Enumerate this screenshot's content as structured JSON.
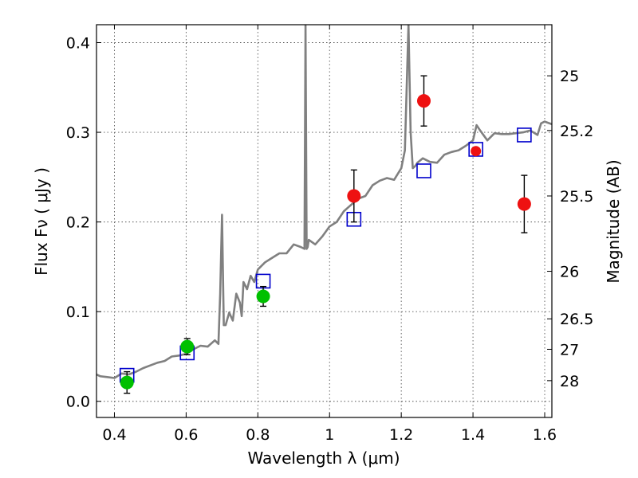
{
  "chart_data": {
    "type": "scatter",
    "title": "",
    "xlabel": "Wavelength  λ (μm)",
    "ylabel": "Flux  Fν  ( μJy )",
    "y2label": "Magnitude (AB)",
    "xlim": [
      0.35,
      1.62
    ],
    "ylim": [
      -0.018,
      0.42
    ],
    "x_ticks": [
      0.4,
      0.6,
      0.8,
      1.0,
      1.2,
      1.4,
      1.6
    ],
    "x_tick_labels": [
      "0.4",
      "0.6",
      "0.8",
      "1",
      "1.2",
      "1.4",
      "1.6"
    ],
    "y_ticks": [
      0.0,
      0.1,
      0.2,
      0.3,
      0.4
    ],
    "y_tick_labels": [
      "0.0",
      "0.1",
      "0.2",
      "0.3",
      "0.4"
    ],
    "y2_ticks": [
      {
        "label": "25",
        "flux": 0.363
      },
      {
        "label": "25.2",
        "flux": 0.302
      },
      {
        "label": "25.5",
        "flux": 0.229
      },
      {
        "label": "26",
        "flux": 0.145
      },
      {
        "label": "26.5",
        "flux": 0.092
      },
      {
        "label": "27",
        "flux": 0.058
      },
      {
        "label": "28",
        "flux": 0.023
      }
    ],
    "grid": true,
    "colors": {
      "sed_model": "#808080",
      "green_points": "#00c000",
      "red_points": "#ee1111",
      "model_boxes": "#0000cc",
      "error_bars": "#000000"
    },
    "series": [
      {
        "kind": "line",
        "x": [
          0.35,
          0.36,
          0.38,
          0.4,
          0.42,
          0.44,
          0.46,
          0.48,
          0.5,
          0.52,
          0.54,
          0.56,
          0.58,
          0.6,
          0.62,
          0.64,
          0.66,
          0.68,
          0.69,
          0.695,
          0.7,
          0.705,
          0.71,
          0.72,
          0.73,
          0.74,
          0.75,
          0.755,
          0.76,
          0.77,
          0.78,
          0.79,
          0.8,
          0.82,
          0.84,
          0.86,
          0.88,
          0.9,
          0.92,
          0.93,
          0.933,
          0.936,
          0.939,
          0.942,
          0.96,
          0.98,
          1.0,
          1.02,
          1.04,
          1.06,
          1.08,
          1.1,
          1.12,
          1.14,
          1.16,
          1.18,
          1.2,
          1.21,
          1.22,
          1.226,
          1.232,
          1.238,
          1.245,
          1.26,
          1.28,
          1.3,
          1.32,
          1.34,
          1.36,
          1.38,
          1.4,
          1.41,
          1.42,
          1.44,
          1.46,
          1.48,
          1.5,
          1.52,
          1.54,
          1.56,
          1.58,
          1.59,
          1.6,
          1.62
        ],
        "y": [
          0.03,
          0.028,
          0.027,
          0.026,
          0.031,
          0.03,
          0.033,
          0.037,
          0.04,
          0.043,
          0.045,
          0.05,
          0.051,
          0.053,
          0.058,
          0.062,
          0.061,
          0.068,
          0.064,
          0.12,
          0.208,
          0.085,
          0.085,
          0.099,
          0.09,
          0.12,
          0.11,
          0.095,
          0.133,
          0.125,
          0.14,
          0.133,
          0.147,
          0.155,
          0.16,
          0.165,
          0.165,
          0.175,
          0.172,
          0.17,
          0.42,
          0.17,
          0.172,
          0.18,
          0.175,
          0.184,
          0.195,
          0.2,
          0.212,
          0.219,
          0.226,
          0.229,
          0.241,
          0.246,
          0.249,
          0.247,
          0.26,
          0.28,
          0.42,
          0.3,
          0.26,
          0.262,
          0.266,
          0.271,
          0.267,
          0.266,
          0.275,
          0.278,
          0.28,
          0.285,
          0.291,
          0.308,
          0.302,
          0.291,
          0.299,
          0.298,
          0.298,
          0.299,
          0.3,
          0.302,
          0.297,
          0.31,
          0.312,
          0.309
        ]
      },
      {
        "kind": "box",
        "x": [
          0.435,
          0.603,
          0.815,
          1.068,
          1.263,
          1.408,
          1.543
        ],
        "y": [
          0.029,
          0.054,
          0.134,
          0.203,
          0.257,
          0.281,
          0.297
        ]
      },
      {
        "kind": "point-with-error",
        "color_key": "green_points",
        "x": [
          0.435,
          0.603,
          0.815
        ],
        "y": [
          0.021,
          0.061,
          0.117
        ],
        "yerr": [
          0.012,
          0.009,
          0.011
        ]
      },
      {
        "kind": "point-with-error",
        "color_key": "red_points",
        "x": [
          1.068,
          1.263,
          1.408,
          1.543
        ],
        "y": [
          0.229,
          0.335,
          0.279,
          0.22
        ],
        "yerr": [
          0.029,
          0.028,
          0.0,
          0.032
        ]
      }
    ]
  }
}
